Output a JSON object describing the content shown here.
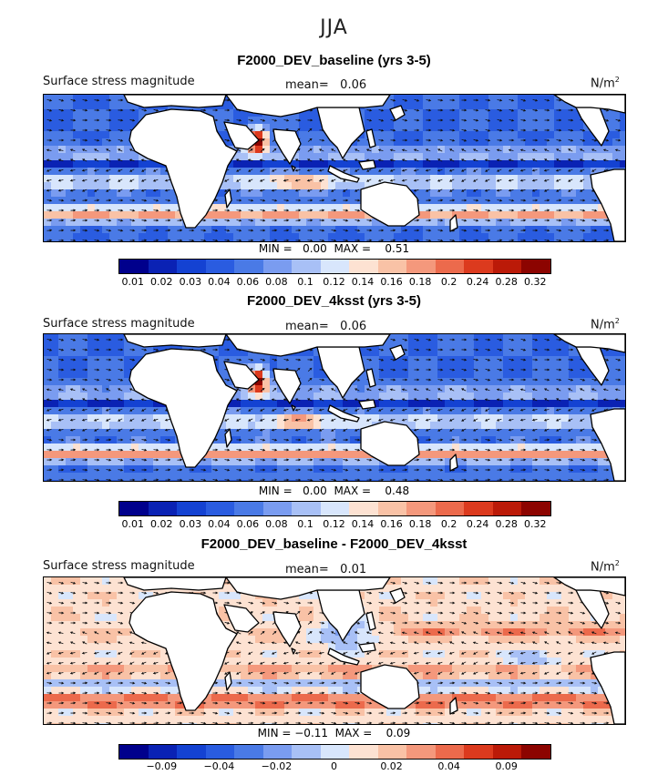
{
  "figure": {
    "season": "JJA",
    "units_base": "N/m",
    "units_exp": "2",
    "colors": {
      "scale": [
        "#00008c",
        "#0a22b4",
        "#1442d2",
        "#2a5ce0",
        "#4a7ae6",
        "#7a9cf0",
        "#a8c0f6",
        "#d8e6fc",
        "#fde2d2",
        "#f9c2a6",
        "#f4987c",
        "#ec6a4c",
        "#dc3a1e",
        "#bb1a08",
        "#8c0400"
      ]
    }
  },
  "panels": [
    {
      "title": "F2000_DEV_baseline (yrs 3-5)",
      "variable": "Surface stress magnitude",
      "mean_label": "mean=",
      "mean_value": "0.06",
      "min_label": "MIN =",
      "min_value": "0.00",
      "max_label": "MAX =",
      "max_value": "0.51",
      "colorbar_ticks": [
        "0.01",
        "0.02",
        "0.03",
        "0.04",
        "0.06",
        "0.08",
        "0.1",
        "0.12",
        "0.14",
        "0.16",
        "0.18",
        "0.2",
        "0.24",
        "0.28",
        "0.32"
      ],
      "field": "abs"
    },
    {
      "title": "F2000_DEV_4ksst (yrs 3-5)",
      "variable": "Surface stress magnitude",
      "mean_label": "mean=",
      "mean_value": "0.06",
      "min_label": "MIN =",
      "min_value": "0.00",
      "max_label": "MAX =",
      "max_value": "0.48",
      "colorbar_ticks": [
        "0.01",
        "0.02",
        "0.03",
        "0.04",
        "0.06",
        "0.08",
        "0.1",
        "0.12",
        "0.14",
        "0.16",
        "0.18",
        "0.2",
        "0.24",
        "0.28",
        "0.32"
      ],
      "field": "abs"
    },
    {
      "title": "F2000_DEV_baseline - F2000_DEV_4ksst",
      "variable": "Surface stress magnitude",
      "mean_label": "mean=",
      "mean_value": "0.01",
      "min_label": "MIN =",
      "min_value": "−0.11",
      "max_label": "MAX =",
      "max_value": "0.09",
      "colorbar_ticks": [
        "−0.09",
        "−0.04",
        "−0.02",
        "0",
        "0.02",
        "0.04",
        "0.09"
      ],
      "field": "diff"
    }
  ]
}
